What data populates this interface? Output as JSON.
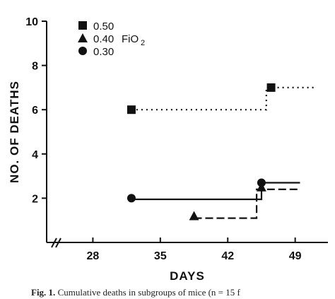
{
  "chart_data": {
    "type": "line",
    "xlabel": "DAYS",
    "ylabel": "NO. OF DEATHS",
    "xlim": [
      23.2,
      52.4
    ],
    "ylim": [
      0,
      10
    ],
    "x_ticks": [
      28,
      35,
      42,
      49
    ],
    "y_ticks": [
      2,
      4,
      6,
      8,
      10
    ],
    "axis_break": "x-axis near origin",
    "grid": false,
    "legend_position": "top-left",
    "legend_suffix": "FiO",
    "legend_suffix_sub": "2",
    "series": [
      {
        "name": "0.50",
        "marker": "square",
        "line_style": "dotted",
        "points": [
          [
            32,
            6
          ],
          [
            46.5,
            7
          ]
        ],
        "steps": [
          [
            32,
            6
          ],
          [
            46,
            6
          ],
          [
            46,
            7
          ],
          [
            51,
            7
          ]
        ]
      },
      {
        "name": "0.40",
        "marker": "triangle",
        "line_style": "dashed",
        "points": [
          [
            38.5,
            1.2
          ],
          [
            45.5,
            2.5
          ]
        ],
        "steps": [
          [
            38.5,
            1.1
          ],
          [
            45,
            1.1
          ],
          [
            45,
            2.4
          ],
          [
            49.5,
            2.4
          ]
        ]
      },
      {
        "name": "0.30",
        "marker": "circle",
        "line_style": "solid",
        "points": [
          [
            32,
            2
          ],
          [
            45.5,
            2.7
          ]
        ],
        "steps": [
          [
            32,
            1.95
          ],
          [
            45.5,
            1.95
          ],
          [
            45.5,
            2.7
          ],
          [
            49.5,
            2.7
          ]
        ]
      }
    ]
  },
  "caption": {
    "lead": "Fig. 1.",
    "text": " Cumulative deaths in subgroups of mice (n = 15 f"
  }
}
